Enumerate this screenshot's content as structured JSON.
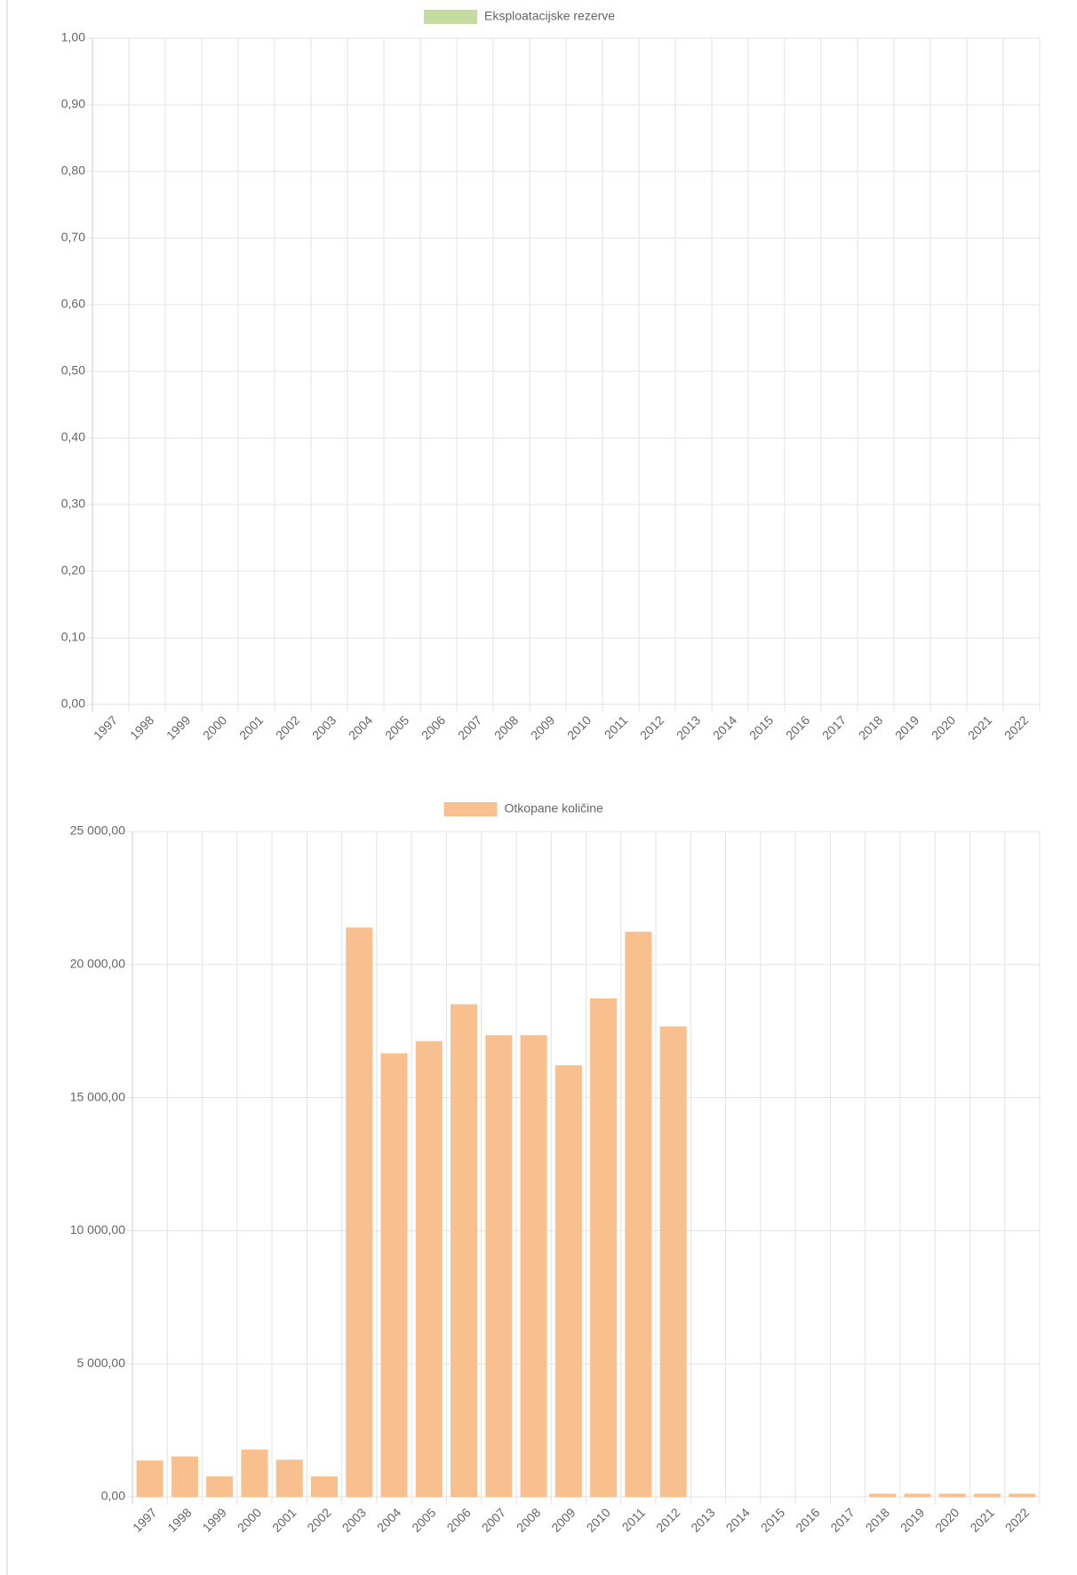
{
  "chart_data": [
    {
      "type": "bar",
      "categories": [
        "1997",
        "1998",
        "1999",
        "2000",
        "2001",
        "2002",
        "2003",
        "2004",
        "2005",
        "2006",
        "2007",
        "2008",
        "2009",
        "2010",
        "2011",
        "2012",
        "2013",
        "2014",
        "2015",
        "2016",
        "2017",
        "2018",
        "2019",
        "2020",
        "2021",
        "2022"
      ],
      "series": [
        {
          "name": "Eksploatacijske rezerve",
          "color": "#c5dca0",
          "values": [
            0,
            0,
            0,
            0,
            0,
            0,
            0,
            0,
            0,
            0,
            0,
            0,
            0,
            0,
            0,
            0,
            0,
            0,
            0,
            0,
            0,
            0,
            0,
            0,
            0,
            0
          ]
        }
      ],
      "ylim": [
        0,
        1
      ],
      "yticks": [
        {
          "value": 0,
          "label": "0,00"
        },
        {
          "value": 0.1,
          "label": "0,10"
        },
        {
          "value": 0.2,
          "label": "0,20"
        },
        {
          "value": 0.3,
          "label": "0,30"
        },
        {
          "value": 0.4,
          "label": "0,40"
        },
        {
          "value": 0.5,
          "label": "0,50"
        },
        {
          "value": 0.6,
          "label": "0,60"
        },
        {
          "value": 0.7,
          "label": "0,70"
        },
        {
          "value": 0.8,
          "label": "0,80"
        },
        {
          "value": 0.9,
          "label": "0,90"
        },
        {
          "value": 1,
          "label": "1,00"
        }
      ],
      "grid": true,
      "legend": "top"
    },
    {
      "type": "bar",
      "categories": [
        "1997",
        "1998",
        "1999",
        "2000",
        "2001",
        "2002",
        "2003",
        "2004",
        "2005",
        "2006",
        "2007",
        "2008",
        "2009",
        "2010",
        "2011",
        "2012",
        "2013",
        "2014",
        "2015",
        "2016",
        "2017",
        "2018",
        "2019",
        "2020",
        "2021",
        "2022"
      ],
      "series": [
        {
          "name": "Otkopane količine",
          "color": "#f9c08f",
          "values": [
            1350,
            1500,
            750,
            1760,
            1380,
            750,
            21370,
            16650,
            17100,
            18490,
            17330,
            17330,
            16200,
            18710,
            21220,
            17660,
            0,
            0,
            0,
            0,
            0,
            100,
            100,
            100,
            100,
            100
          ]
        }
      ],
      "ylim": [
        0,
        25000
      ],
      "yticks": [
        {
          "value": 0,
          "label": "0,00"
        },
        {
          "value": 5000,
          "label": "5 000,00"
        },
        {
          "value": 10000,
          "label": "10 000,00"
        },
        {
          "value": 15000,
          "label": "15 000,00"
        },
        {
          "value": 20000,
          "label": "20 000,00"
        },
        {
          "value": 25000,
          "label": "25 000,00"
        }
      ],
      "grid": true,
      "legend": "top"
    }
  ]
}
